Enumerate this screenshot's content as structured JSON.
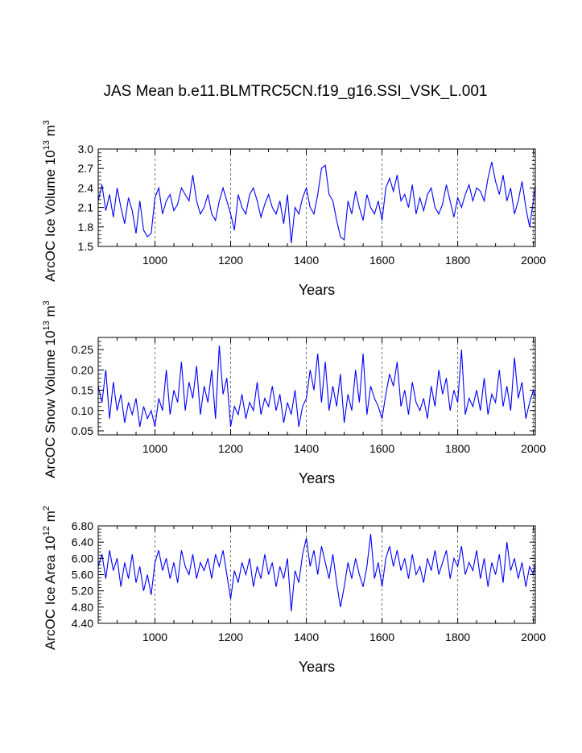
{
  "figure": {
    "title": "JAS Mean b.e11.BLMTRC5CN.f19_g16.SSI_VSK_L.001",
    "line_color": "#0000ff",
    "grid_color": "#555555"
  },
  "chart_data": [
    {
      "type": "line",
      "title": "",
      "ylabel_main": "ArcOC Ice Volume 10",
      "ylabel_sup1": "13",
      "ylabel_mid": " m",
      "ylabel_sup2": "3",
      "xlabel": "Years",
      "xlim": [
        850,
        2005
      ],
      "ylim": [
        1.5,
        3.0
      ],
      "x_ticks": [
        1000,
        1200,
        1400,
        1600,
        1800,
        2000
      ],
      "x_tick_labels": [
        "1000",
        "1200",
        "1400",
        "1600",
        "1800",
        "2000"
      ],
      "y_ticks": [
        1.5,
        1.8,
        2.1,
        2.4,
        2.7,
        3.0
      ],
      "y_tick_labels": [
        "1.5",
        "1.8",
        "2.1",
        "2.4",
        "2.7",
        "3.0"
      ],
      "grid": "vertical dashed at x ticks",
      "series": [
        {
          "color": "#0000ff",
          "x": [
            850,
            860,
            870,
            880,
            890,
            900,
            910,
            920,
            930,
            940,
            950,
            960,
            970,
            980,
            990,
            1000,
            1010,
            1020,
            1030,
            1040,
            1050,
            1060,
            1070,
            1080,
            1090,
            1100,
            1110,
            1120,
            1130,
            1140,
            1150,
            1160,
            1170,
            1180,
            1190,
            1200,
            1210,
            1220,
            1230,
            1240,
            1250,
            1260,
            1270,
            1280,
            1290,
            1300,
            1310,
            1320,
            1330,
            1340,
            1350,
            1360,
            1370,
            1380,
            1390,
            1400,
            1410,
            1420,
            1430,
            1440,
            1450,
            1460,
            1470,
            1480,
            1490,
            1500,
            1510,
            1520,
            1530,
            1540,
            1550,
            1560,
            1570,
            1580,
            1590,
            1600,
            1610,
            1620,
            1630,
            1640,
            1650,
            1660,
            1670,
            1680,
            1690,
            1700,
            1710,
            1720,
            1730,
            1740,
            1750,
            1760,
            1770,
            1780,
            1790,
            1800,
            1810,
            1820,
            1830,
            1840,
            1850,
            1860,
            1870,
            1880,
            1890,
            1900,
            1910,
            1920,
            1930,
            1940,
            1950,
            1960,
            1970,
            1980,
            1990,
            2000,
            2005
          ],
          "y": [
            2.2,
            2.45,
            2.05,
            2.3,
            1.95,
            2.4,
            2.1,
            1.85,
            2.25,
            2.05,
            1.7,
            2.2,
            1.75,
            1.65,
            1.7,
            2.25,
            2.4,
            2.0,
            2.2,
            2.3,
            2.05,
            2.15,
            2.4,
            2.3,
            2.2,
            2.6,
            2.2,
            2.0,
            2.1,
            2.3,
            2.0,
            1.9,
            2.2,
            2.4,
            2.2,
            2.0,
            1.75,
            2.3,
            2.1,
            2.0,
            2.3,
            2.4,
            2.2,
            1.95,
            2.15,
            2.3,
            2.1,
            2.0,
            2.2,
            1.85,
            2.3,
            1.55,
            2.1,
            2.0,
            2.25,
            2.4,
            2.1,
            2.0,
            2.3,
            2.7,
            2.75,
            2.3,
            2.2,
            1.9,
            1.65,
            1.6,
            2.2,
            2.0,
            2.35,
            2.1,
            1.9,
            2.3,
            2.1,
            2.0,
            2.2,
            1.9,
            2.4,
            2.55,
            2.35,
            2.6,
            2.2,
            2.3,
            2.1,
            2.45,
            2.0,
            2.25,
            2.05,
            2.3,
            2.4,
            2.1,
            2.0,
            2.15,
            2.45,
            2.2,
            1.95,
            2.25,
            2.1,
            2.3,
            2.45,
            2.2,
            2.4,
            2.35,
            2.2,
            2.55,
            2.8,
            2.5,
            2.3,
            2.6,
            2.2,
            2.4,
            2.0,
            2.2,
            2.5,
            2.1,
            1.8,
            2.2,
            2.45
          ]
        }
      ]
    },
    {
      "type": "line",
      "title": "",
      "ylabel_main": "ArcOC Snow Volume 10",
      "ylabel_sup1": "13",
      "ylabel_mid": " m",
      "ylabel_sup2": "3",
      "xlabel": "Years",
      "xlim": [
        850,
        2005
      ],
      "ylim": [
        0.04,
        0.28
      ],
      "x_ticks": [
        1000,
        1200,
        1400,
        1600,
        1800,
        2000
      ],
      "x_tick_labels": [
        "1000",
        "1200",
        "1400",
        "1600",
        "1800",
        "2000"
      ],
      "y_ticks": [
        0.05,
        0.1,
        0.15,
        0.2,
        0.25
      ],
      "y_tick_labels": [
        "0.05",
        "0.10",
        "0.15",
        "0.20",
        "0.25"
      ],
      "grid": "vertical dashed at x ticks",
      "series": [
        {
          "color": "#0000ff",
          "x": [
            850,
            860,
            870,
            880,
            890,
            900,
            910,
            920,
            930,
            940,
            950,
            960,
            970,
            980,
            990,
            1000,
            1010,
            1020,
            1030,
            1040,
            1050,
            1060,
            1070,
            1080,
            1090,
            1100,
            1110,
            1120,
            1130,
            1140,
            1150,
            1160,
            1170,
            1180,
            1190,
            1200,
            1210,
            1220,
            1230,
            1240,
            1250,
            1260,
            1270,
            1280,
            1290,
            1300,
            1310,
            1320,
            1330,
            1340,
            1350,
            1360,
            1370,
            1380,
            1390,
            1400,
            1410,
            1420,
            1430,
            1440,
            1450,
            1460,
            1470,
            1480,
            1490,
            1500,
            1510,
            1520,
            1530,
            1540,
            1550,
            1560,
            1570,
            1580,
            1590,
            1600,
            1610,
            1620,
            1630,
            1640,
            1650,
            1660,
            1670,
            1680,
            1690,
            1700,
            1710,
            1720,
            1730,
            1740,
            1750,
            1760,
            1770,
            1780,
            1790,
            1800,
            1810,
            1820,
            1830,
            1840,
            1850,
            1860,
            1870,
            1880,
            1890,
            1900,
            1910,
            1920,
            1930,
            1940,
            1950,
            1960,
            1970,
            1980,
            1990,
            2000,
            2005
          ],
          "y": [
            0.16,
            0.12,
            0.2,
            0.08,
            0.17,
            0.1,
            0.14,
            0.07,
            0.12,
            0.09,
            0.13,
            0.06,
            0.11,
            0.08,
            0.1,
            0.06,
            0.13,
            0.1,
            0.2,
            0.09,
            0.15,
            0.12,
            0.22,
            0.1,
            0.17,
            0.13,
            0.21,
            0.09,
            0.16,
            0.12,
            0.2,
            0.08,
            0.26,
            0.14,
            0.18,
            0.06,
            0.11,
            0.09,
            0.14,
            0.08,
            0.12,
            0.1,
            0.17,
            0.09,
            0.13,
            0.11,
            0.16,
            0.1,
            0.14,
            0.07,
            0.12,
            0.09,
            0.15,
            0.06,
            0.11,
            0.13,
            0.2,
            0.15,
            0.24,
            0.12,
            0.22,
            0.1,
            0.16,
            0.11,
            0.19,
            0.07,
            0.14,
            0.1,
            0.2,
            0.12,
            0.24,
            0.09,
            0.16,
            0.13,
            0.11,
            0.08,
            0.14,
            0.19,
            0.16,
            0.22,
            0.11,
            0.15,
            0.09,
            0.17,
            0.12,
            0.1,
            0.13,
            0.08,
            0.16,
            0.11,
            0.2,
            0.14,
            0.18,
            0.1,
            0.15,
            0.12,
            0.25,
            0.09,
            0.13,
            0.11,
            0.15,
            0.1,
            0.18,
            0.09,
            0.14,
            0.12,
            0.2,
            0.11,
            0.16,
            0.1,
            0.23,
            0.13,
            0.17,
            0.08,
            0.12,
            0.15,
            0.13
          ]
        }
      ]
    },
    {
      "type": "line",
      "title": "",
      "ylabel_main": "ArcOC Ice Area 10",
      "ylabel_sup1": "12",
      "ylabel_mid": " m",
      "ylabel_sup2": "2",
      "xlabel": "Years",
      "xlim": [
        850,
        2005
      ],
      "ylim": [
        4.4,
        6.8
      ],
      "x_ticks": [
        1000,
        1200,
        1400,
        1600,
        1800,
        2000
      ],
      "x_tick_labels": [
        "1000",
        "1200",
        "1400",
        "1600",
        "1800",
        "2000"
      ],
      "y_ticks": [
        4.4,
        4.8,
        5.2,
        5.6,
        6.0,
        6.4,
        6.8
      ],
      "y_tick_labels": [
        "4.40",
        "4.80",
        "5.20",
        "5.60",
        "6.00",
        "6.40",
        "6.80"
      ],
      "grid": "vertical dashed at x ticks",
      "series": [
        {
          "color": "#0000ff",
          "x": [
            850,
            860,
            870,
            880,
            890,
            900,
            910,
            920,
            930,
            940,
            950,
            960,
            970,
            980,
            990,
            1000,
            1010,
            1020,
            1030,
            1040,
            1050,
            1060,
            1070,
            1080,
            1090,
            1100,
            1110,
            1120,
            1130,
            1140,
            1150,
            1160,
            1170,
            1180,
            1190,
            1200,
            1210,
            1220,
            1230,
            1240,
            1250,
            1260,
            1270,
            1280,
            1290,
            1300,
            1310,
            1320,
            1330,
            1340,
            1350,
            1360,
            1370,
            1380,
            1390,
            1400,
            1410,
            1420,
            1430,
            1440,
            1450,
            1460,
            1470,
            1480,
            1490,
            1500,
            1510,
            1520,
            1530,
            1540,
            1550,
            1560,
            1570,
            1580,
            1590,
            1600,
            1610,
            1620,
            1630,
            1640,
            1650,
            1660,
            1670,
            1680,
            1690,
            1700,
            1710,
            1720,
            1730,
            1740,
            1750,
            1760,
            1770,
            1780,
            1790,
            1800,
            1810,
            1820,
            1830,
            1840,
            1850,
            1860,
            1870,
            1880,
            1890,
            1900,
            1910,
            1920,
            1930,
            1940,
            1950,
            1960,
            1970,
            1980,
            1990,
            2000,
            2005
          ],
          "y": [
            5.8,
            6.1,
            5.5,
            6.2,
            5.7,
            6.0,
            5.3,
            5.9,
            5.5,
            6.1,
            5.4,
            5.8,
            5.2,
            5.6,
            5.1,
            5.9,
            6.2,
            5.7,
            6.0,
            5.5,
            5.9,
            5.4,
            6.2,
            5.8,
            5.6,
            6.1,
            5.5,
            5.9,
            5.7,
            6.0,
            5.5,
            6.1,
            5.8,
            6.2,
            5.6,
            5.0,
            5.7,
            5.4,
            5.9,
            5.6,
            6.0,
            5.3,
            5.8,
            5.5,
            6.1,
            5.6,
            5.9,
            5.3,
            5.8,
            5.5,
            6.0,
            4.7,
            5.7,
            5.4,
            6.1,
            6.5,
            5.8,
            6.2,
            5.6,
            6.3,
            5.9,
            5.5,
            6.1,
            5.4,
            4.8,
            5.3,
            5.9,
            5.5,
            6.0,
            5.6,
            5.3,
            5.8,
            6.6,
            5.5,
            5.9,
            5.3,
            6.0,
            6.3,
            5.8,
            6.2,
            5.7,
            6.0,
            5.5,
            6.1,
            5.6,
            5.8,
            5.4,
            6.0,
            5.7,
            6.2,
            5.6,
            5.9,
            6.2,
            5.5,
            6.0,
            5.8,
            6.3,
            5.6,
            5.9,
            5.7,
            6.2,
            5.5,
            6.0,
            5.3,
            5.9,
            5.6,
            6.1,
            5.4,
            6.4,
            5.7,
            6.0,
            5.5,
            5.9,
            5.3,
            5.8,
            5.6,
            5.9
          ]
        }
      ]
    }
  ]
}
